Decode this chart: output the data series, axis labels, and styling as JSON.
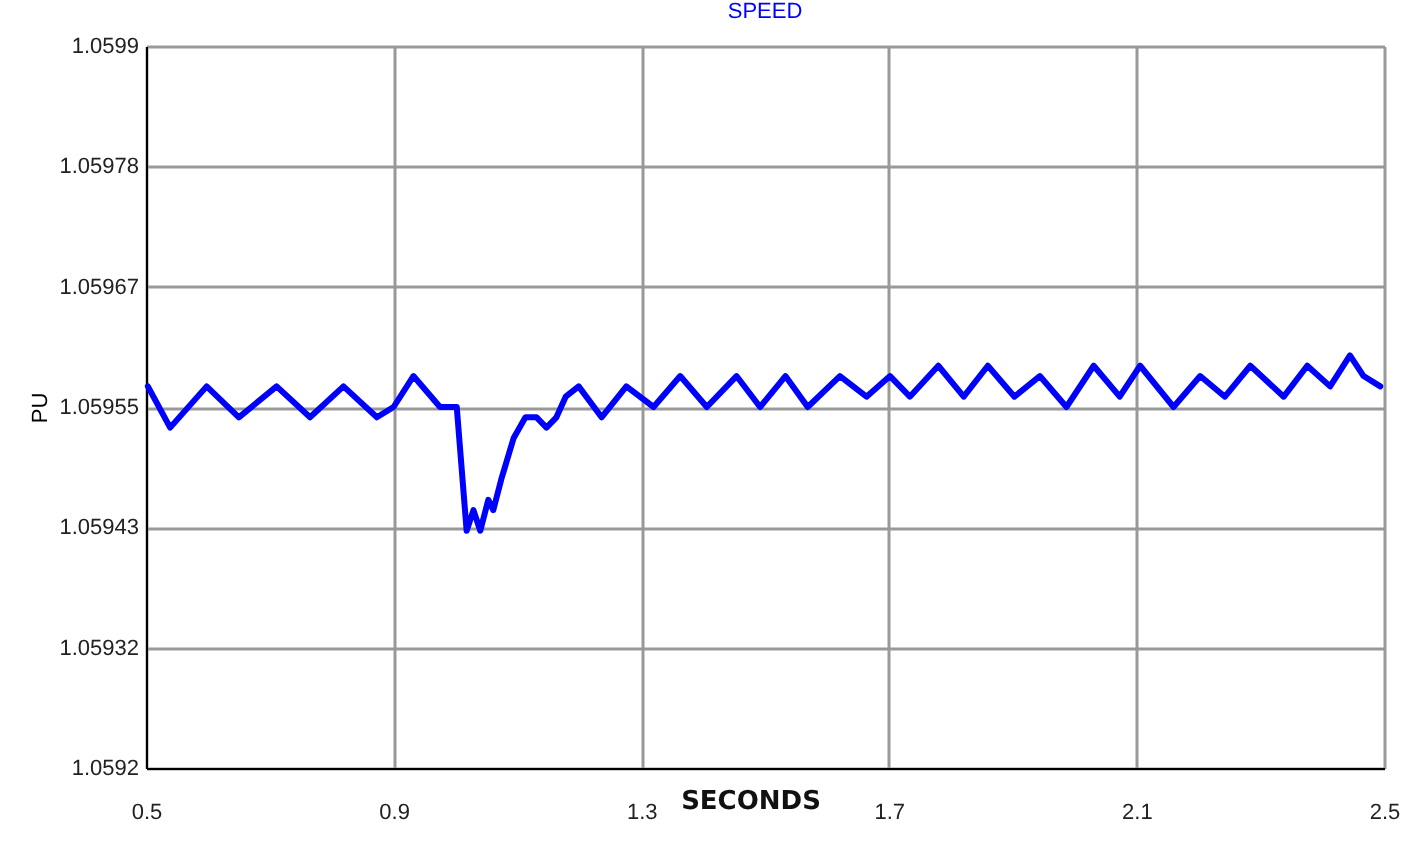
{
  "chart_data": {
    "type": "line",
    "title": "SPEED",
    "xlabel": "SECONDS",
    "ylabel": "PU",
    "grid": true,
    "xlim": [
      0.5,
      2.5
    ],
    "xticks": [
      0.5,
      0.9,
      1.3,
      1.7,
      2.1,
      2.5
    ],
    "ylim": [
      1.0592,
      1.0599
    ],
    "yticks": [
      1.0592,
      {
        "value": 1.0593167,
        "label": "1.05932"
      },
      {
        "value": 1.0594333,
        "label": "1.05943"
      },
      1.05955,
      {
        "value": 1.0596667,
        "label": "1.05967"
      },
      {
        "value": 1.0597833,
        "label": "1.05978"
      },
      1.0599
    ],
    "series": [
      {
        "color": "#0000ff",
        "x": [
          0.503,
          0.539,
          0.598,
          0.65,
          0.711,
          0.765,
          0.819,
          0.873,
          0.9,
          0.932,
          0.975,
          1.002,
          1.018,
          1.029,
          1.04,
          1.053,
          1.061,
          1.074,
          1.094,
          1.113,
          1.131,
          1.147,
          1.163,
          1.178,
          1.199,
          1.236,
          1.276,
          1.32,
          1.363,
          1.406,
          1.454,
          1.492,
          1.533,
          1.569,
          1.621,
          1.664,
          1.702,
          1.734,
          1.78,
          1.821,
          1.86,
          1.903,
          1.944,
          1.987,
          2.031,
          2.073,
          2.106,
          2.16,
          2.203,
          2.243,
          2.284,
          2.338,
          2.376,
          2.413,
          2.445,
          2.467,
          2.494
        ],
        "values": [
          1.05957,
          1.05953,
          1.05957,
          1.05954,
          1.05957,
          1.05954,
          1.05957,
          1.05954,
          1.05955,
          1.05958,
          1.05955,
          1.05955,
          1.05943,
          1.05945,
          1.05943,
          1.05946,
          1.05945,
          1.05948,
          1.05952,
          1.05954,
          1.05954,
          1.05953,
          1.05954,
          1.05956,
          1.05957,
          1.05954,
          1.05957,
          1.05955,
          1.05958,
          1.05955,
          1.05958,
          1.05955,
          1.05958,
          1.05955,
          1.05958,
          1.05956,
          1.05958,
          1.05956,
          1.05959,
          1.05956,
          1.05959,
          1.05956,
          1.05958,
          1.05955,
          1.05959,
          1.05956,
          1.05959,
          1.05955,
          1.05958,
          1.05956,
          1.05959,
          1.05956,
          1.05959,
          1.05957,
          1.0596,
          1.05958,
          1.05957
        ]
      }
    ]
  }
}
